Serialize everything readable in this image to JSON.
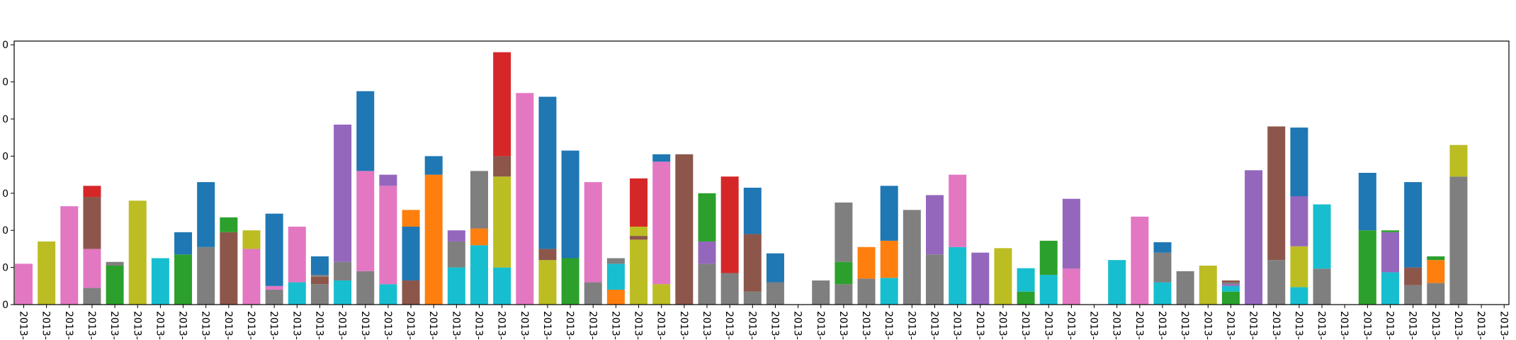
{
  "colors": {
    "blue": "#1f77b4",
    "orange": "#ff7f0e",
    "green": "#2ca02c",
    "red": "#d62728",
    "purple": "#9467bd",
    "brown": "#8c564b",
    "pink": "#e377c2",
    "gray": "#7f7f7f",
    "olive": "#bcbd22",
    "cyan": "#17becf"
  },
  "chart_data": {
    "type": "bar",
    "stacked": true,
    "title": "",
    "xlabel": "",
    "ylabel": "",
    "ylim": [
      0,
      7.1
    ],
    "grid": false,
    "y_tick_labels": [
      "0",
      "0",
      "0",
      "0",
      "0",
      "0",
      "0",
      "0"
    ],
    "x_tick_labels": [
      "2013-",
      "2013-",
      "2013-",
      "2013-",
      "2013-",
      "2013-",
      "2013-",
      "2013-",
      "2013-",
      "2013-",
      "2013-",
      "2013-",
      "2013-",
      "2013-",
      "2013-",
      "2013-",
      "2013-",
      "2013-",
      "2013-",
      "2013-",
      "2013-",
      "2013-",
      "2013-",
      "2013-",
      "2013-",
      "2013-",
      "2013-",
      "2013-",
      "2013-",
      "2013-",
      "2013-",
      "2013-",
      "2013-",
      "2013-",
      "2013-",
      "2013-",
      "2013-",
      "2013-",
      "2013-",
      "2013-",
      "2013-",
      "2013-",
      "2013-",
      "2013-",
      "2013-",
      "2013-",
      "2013-",
      "2013-",
      "2013-",
      "2013-",
      "2013-",
      "2013-",
      "2013-",
      "2013-",
      "2013-",
      "2013-",
      "2013-",
      "2013-",
      "2013-",
      "2013-",
      "2013-",
      "2013-",
      "2013-",
      "2013-",
      "2013-",
      "2013-"
    ],
    "bars": [
      [
        {
          "c": "pink",
          "v": 1.1
        }
      ],
      [
        {
          "c": "olive",
          "v": 1.7
        }
      ],
      [
        {
          "c": "pink",
          "v": 2.65
        }
      ],
      [
        {
          "c": "gray",
          "v": 0.45
        },
        {
          "c": "pink",
          "v": 1.05
        },
        {
          "c": "brown",
          "v": 1.4
        },
        {
          "c": "red",
          "v": 0.3
        }
      ],
      [
        {
          "c": "green",
          "v": 1.05
        },
        {
          "c": "gray",
          "v": 0.1
        }
      ],
      [
        {
          "c": "olive",
          "v": 2.8
        }
      ],
      [
        {
          "c": "cyan",
          "v": 1.25
        }
      ],
      [
        {
          "c": "green",
          "v": 1.35
        },
        {
          "c": "blue",
          "v": 0.6
        }
      ],
      [
        {
          "c": "gray",
          "v": 1.55
        },
        {
          "c": "blue",
          "v": 1.75
        }
      ],
      [
        {
          "c": "brown",
          "v": 1.95
        },
        {
          "c": "green",
          "v": 0.4
        }
      ],
      [
        {
          "c": "pink",
          "v": 1.5
        },
        {
          "c": "olive",
          "v": 0.5
        }
      ],
      [
        {
          "c": "gray",
          "v": 0.4
        },
        {
          "c": "pink",
          "v": 0.1
        },
        {
          "c": "blue",
          "v": 1.95
        }
      ],
      [
        {
          "c": "cyan",
          "v": 0.6
        },
        {
          "c": "pink",
          "v": 1.5
        }
      ],
      [
        {
          "c": "gray",
          "v": 0.55
        },
        {
          "c": "brown",
          "v": 0.2
        },
        {
          "c": "gray",
          "v": 0.05
        },
        {
          "c": "blue",
          "v": 0.5
        }
      ],
      [
        {
          "c": "cyan",
          "v": 0.65
        },
        {
          "c": "gray",
          "v": 0.5
        },
        {
          "c": "purple",
          "v": 3.7
        }
      ],
      [
        {
          "c": "gray",
          "v": 0.9
        },
        {
          "c": "pink",
          "v": 2.7
        },
        {
          "c": "blue",
          "v": 2.15
        }
      ],
      [
        {
          "c": "cyan",
          "v": 0.55
        },
        {
          "c": "pink",
          "v": 2.65
        },
        {
          "c": "purple",
          "v": 0.3
        }
      ],
      [
        {
          "c": "brown",
          "v": 0.65
        },
        {
          "c": "blue",
          "v": 1.45
        },
        {
          "c": "orange",
          "v": 0.45
        }
      ],
      [
        {
          "c": "orange",
          "v": 3.5
        },
        {
          "c": "blue",
          "v": 0.5
        }
      ],
      [
        {
          "c": "cyan",
          "v": 1.0
        },
        {
          "c": "gray",
          "v": 0.7
        },
        {
          "c": "purple",
          "v": 0.3
        }
      ],
      [
        {
          "c": "cyan",
          "v": 1.6
        },
        {
          "c": "orange",
          "v": 0.45
        },
        {
          "c": "gray",
          "v": 1.55
        }
      ],
      [
        {
          "c": "cyan",
          "v": 1.0
        },
        {
          "c": "olive",
          "v": 2.45
        },
        {
          "c": "brown",
          "v": 0.55
        },
        {
          "c": "red",
          "v": 2.8
        }
      ],
      [
        {
          "c": "pink",
          "v": 5.7
        }
      ],
      [
        {
          "c": "olive",
          "v": 1.2
        },
        {
          "c": "brown",
          "v": 0.3
        },
        {
          "c": "blue",
          "v": 4.1
        }
      ],
      [
        {
          "c": "green",
          "v": 1.25
        },
        {
          "c": "blue",
          "v": 2.9
        }
      ],
      [
        {
          "c": "gray",
          "v": 0.6
        },
        {
          "c": "pink",
          "v": 2.7
        }
      ],
      [
        {
          "c": "orange",
          "v": 0.4
        },
        {
          "c": "cyan",
          "v": 0.7
        },
        {
          "c": "gray",
          "v": 0.15
        }
      ],
      [
        {
          "c": "olive",
          "v": 1.75
        },
        {
          "c": "brown",
          "v": 0.1
        },
        {
          "c": "olive",
          "v": 0.25
        },
        {
          "c": "red",
          "v": 1.3
        }
      ],
      [
        {
          "c": "olive",
          "v": 0.55
        },
        {
          "c": "pink",
          "v": 3.3
        },
        {
          "c": "blue",
          "v": 0.2
        }
      ],
      [
        {
          "c": "brown",
          "v": 4.05
        }
      ],
      [
        {
          "c": "gray",
          "v": 1.1
        },
        {
          "c": "purple",
          "v": 0.6
        },
        {
          "c": "green",
          "v": 1.3
        }
      ],
      [
        {
          "c": "gray",
          "v": 0.85
        },
        {
          "c": "red",
          "v": 2.6
        }
      ],
      [
        {
          "c": "gray",
          "v": 0.35
        },
        {
          "c": "brown",
          "v": 1.55
        },
        {
          "c": "blue",
          "v": 1.25
        }
      ],
      [
        {
          "c": "gray",
          "v": 0.6
        },
        {
          "c": "blue",
          "v": 0.78
        }
      ],
      [],
      [
        {
          "c": "gray",
          "v": 0.65
        }
      ],
      [
        {
          "c": "gray",
          "v": 0.55
        },
        {
          "c": "green",
          "v": 0.6
        },
        {
          "c": "gray",
          "v": 1.6
        }
      ],
      [
        {
          "c": "gray",
          "v": 0.7
        },
        {
          "c": "orange",
          "v": 0.85
        }
      ],
      [
        {
          "c": "cyan",
          "v": 0.72
        },
        {
          "c": "orange",
          "v": 1.0
        },
        {
          "c": "blue",
          "v": 1.48
        }
      ],
      [
        {
          "c": "gray",
          "v": 2.55
        }
      ],
      [
        {
          "c": "gray",
          "v": 1.35
        },
        {
          "c": "purple",
          "v": 1.6
        }
      ],
      [
        {
          "c": "cyan",
          "v": 1.55
        },
        {
          "c": "pink",
          "v": 1.95
        }
      ],
      [
        {
          "c": "purple",
          "v": 1.4
        }
      ],
      [
        {
          "c": "olive",
          "v": 1.52
        }
      ],
      [
        {
          "c": "green",
          "v": 0.35
        },
        {
          "c": "cyan",
          "v": 0.63
        }
      ],
      [
        {
          "c": "cyan",
          "v": 0.8
        },
        {
          "c": "green",
          "v": 0.92
        }
      ],
      [
        {
          "c": "pink",
          "v": 0.97
        },
        {
          "c": "purple",
          "v": 1.88
        }
      ],
      [],
      [
        {
          "c": "cyan",
          "v": 1.2
        }
      ],
      [
        {
          "c": "pink",
          "v": 2.37
        }
      ],
      [
        {
          "c": "cyan",
          "v": 0.6
        },
        {
          "c": "gray",
          "v": 0.8
        },
        {
          "c": "blue",
          "v": 0.28
        }
      ],
      [
        {
          "c": "gray",
          "v": 0.9
        }
      ],
      [
        {
          "c": "olive",
          "v": 1.05
        }
      ],
      [
        {
          "c": "green",
          "v": 0.35
        },
        {
          "c": "cyan",
          "v": 0.15
        },
        {
          "c": "purple",
          "v": 0.05
        },
        {
          "c": "gray",
          "v": 0.05
        },
        {
          "c": "brown",
          "v": 0.05
        }
      ],
      [
        {
          "c": "purple",
          "v": 3.62
        }
      ],
      [
        {
          "c": "gray",
          "v": 1.2
        },
        {
          "c": "brown",
          "v": 3.6
        }
      ],
      [
        {
          "c": "cyan",
          "v": 0.47
        },
        {
          "c": "olive",
          "v": 1.1
        },
        {
          "c": "purple",
          "v": 1.35
        },
        {
          "c": "blue",
          "v": 1.85
        }
      ],
      [
        {
          "c": "gray",
          "v": 0.97
        },
        {
          "c": "cyan",
          "v": 1.73
        }
      ],
      [],
      [
        {
          "c": "green",
          "v": 2.0
        },
        {
          "c": "blue",
          "v": 1.55
        }
      ],
      [
        {
          "c": "cyan",
          "v": 0.87
        },
        {
          "c": "purple",
          "v": 1.08
        },
        {
          "c": "green",
          "v": 0.05
        }
      ],
      [
        {
          "c": "gray",
          "v": 0.52
        },
        {
          "c": "brown",
          "v": 0.48
        },
        {
          "c": "blue",
          "v": 2.3
        }
      ],
      [
        {
          "c": "gray",
          "v": 0.58
        },
        {
          "c": "orange",
          "v": 0.62
        },
        {
          "c": "green",
          "v": 0.1
        }
      ],
      [
        {
          "c": "gray",
          "v": 3.45
        },
        {
          "c": "olive",
          "v": 0.85
        }
      ],
      []
    ]
  }
}
